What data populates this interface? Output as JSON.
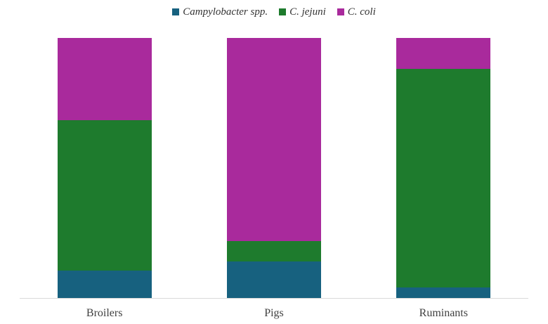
{
  "chart_data": {
    "type": "bar",
    "subtype": "stacked-percent",
    "title": "",
    "xlabel": "",
    "ylabel": "",
    "ylim": [
      0,
      100
    ],
    "grid": false,
    "legend_position": "top",
    "categories": [
      "Broilers",
      "Pigs",
      "Ruminants"
    ],
    "series": [
      {
        "name": "Campylobacter spp.",
        "color": "#17617f",
        "values": [
          10.5,
          14,
          4
        ]
      },
      {
        "name": "C. jejuni",
        "color": "#1e7b2d",
        "values": [
          58,
          8,
          84
        ]
      },
      {
        "name": "C. coli",
        "color": "#a92a9c",
        "values": [
          31.5,
          78,
          12
        ]
      }
    ],
    "axis_line_color": "#d9d9d9"
  }
}
